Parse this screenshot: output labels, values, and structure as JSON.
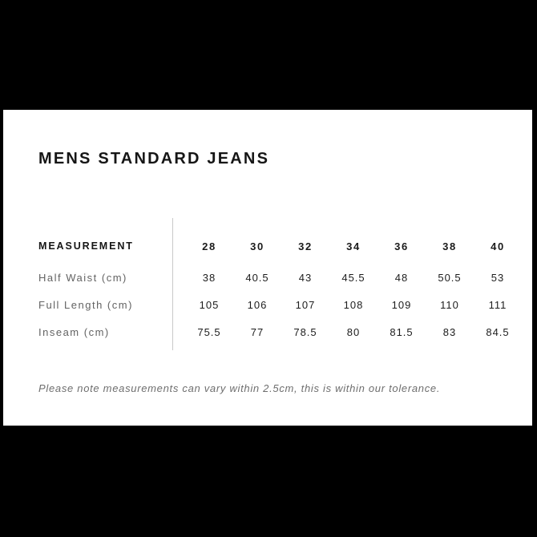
{
  "modal": {
    "title": "MENS STANDARD JEANS",
    "table": {
      "header_label": "MEASUREMENT",
      "sizes": [
        "28",
        "30",
        "32",
        "34",
        "36",
        "38",
        "40"
      ],
      "rows": [
        {
          "label": "Half Waist (cm)",
          "values": [
            "38",
            "40.5",
            "43",
            "45.5",
            "48",
            "50.5",
            "53"
          ]
        },
        {
          "label": "Full Length (cm)",
          "values": [
            "105",
            "106",
            "107",
            "108",
            "109",
            "110",
            "111"
          ]
        },
        {
          "label": "Inseam (cm)",
          "values": [
            "75.5",
            "77",
            "78.5",
            "80",
            "81.5",
            "83",
            "84.5"
          ]
        }
      ]
    },
    "note": "Please note measurements can vary within 2.5cm, this is within our tolerance.",
    "colors": {
      "page_background": "#000000",
      "panel_background": "#ffffff",
      "heading_text": "#161616",
      "value_text": "#1d1d1d",
      "label_text": "#636363",
      "note_text": "#6e6e6e",
      "divider": "#c9c9c9"
    }
  }
}
